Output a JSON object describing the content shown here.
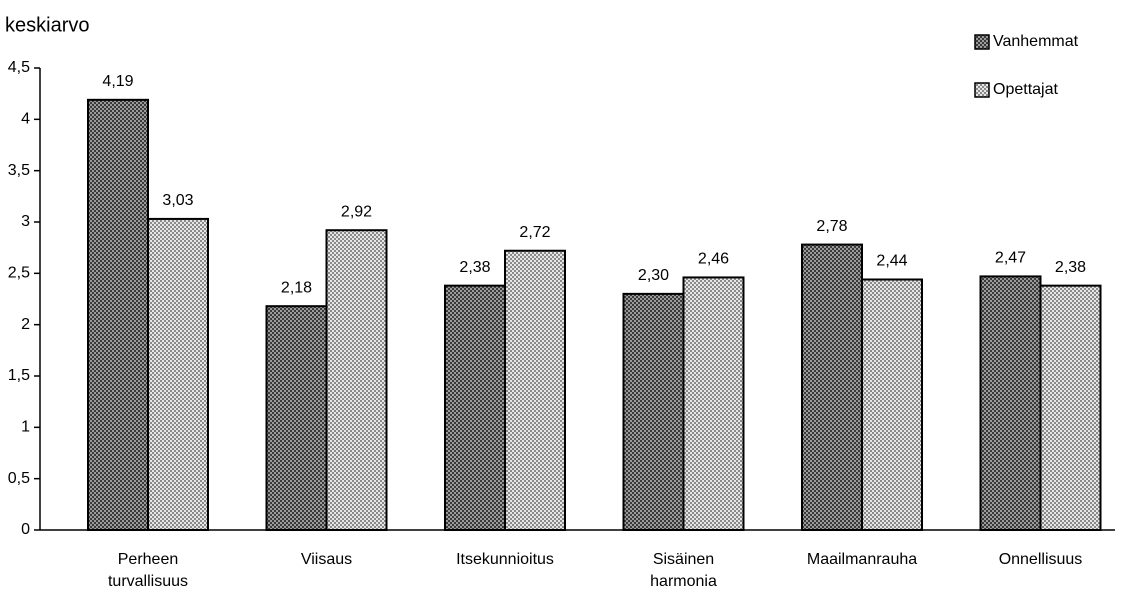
{
  "chart_data": {
    "type": "bar",
    "y_label": "keskiarvo",
    "categories": [
      "Perheen turvallisuus",
      "Viisaus",
      "Itsekunnioitus",
      "Sisäinen harmonia",
      "Maailmanrauha",
      "Onnellisuus"
    ],
    "series": [
      {
        "name": "Vanhemmat",
        "color": "#6e6e6e",
        "values": [
          4.19,
          2.18,
          2.38,
          2.3,
          2.78,
          2.47
        ],
        "value_labels": [
          "4,19",
          "2,18",
          "2,38",
          "2,30",
          "2,78",
          "2,47"
        ]
      },
      {
        "name": "Opettajat",
        "color": "#c4c4c4",
        "values": [
          3.03,
          2.92,
          2.72,
          2.46,
          2.44,
          2.38
        ],
        "value_labels": [
          "3,03",
          "2,92",
          "2,72",
          "2,46",
          "2,44",
          "2,38"
        ]
      }
    ],
    "ylim": [
      0,
      4.5
    ],
    "yticks": [
      0,
      {
        "value": 0.5,
        "label": "0,5"
      },
      1,
      {
        "value": 1.5,
        "label": "1,5"
      },
      2,
      {
        "value": 2.5,
        "label": "2,5"
      },
      3,
      {
        "value": 3.5,
        "label": "3,5"
      },
      4,
      {
        "value": 4.5,
        "label": "4,5"
      }
    ],
    "legend": "top-right"
  }
}
